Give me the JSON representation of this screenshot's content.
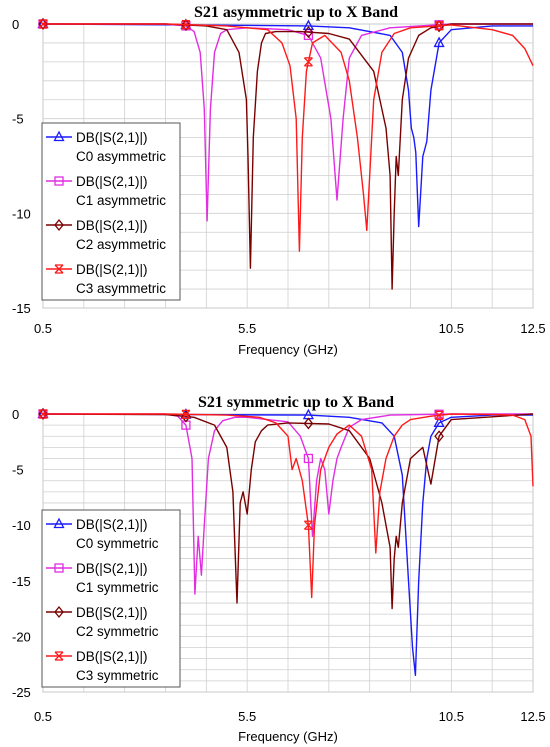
{
  "chart_data": [
    {
      "type": "line",
      "title": "S21 asymmetric up to X Band",
      "xlabel": "Frequency (GHz)",
      "ylabel": "",
      "xlim": [
        0.5,
        12.5
      ],
      "ylim": [
        -15,
        0
      ],
      "xticks": [
        0.5,
        5.5,
        10.5,
        12.5
      ],
      "xtick_labels": [
        "0.5",
        "5.5",
        "10.5",
        "12.5"
      ],
      "yticks": [
        0,
        -5,
        -10,
        -15
      ],
      "ytick_labels": [
        "0",
        "-5",
        "-10",
        "-15"
      ],
      "grid": true,
      "legend_placement": "left",
      "series": [
        {
          "line1": "DB(|S(2,1)|)",
          "line2": "C0 asymmetric",
          "color": "#1a1aff",
          "marker": "triangle",
          "x": [
            0.5,
            4.0,
            7.0,
            8.0,
            9.0,
            9.3,
            9.45,
            9.52,
            9.58,
            9.63,
            9.7,
            9.8,
            9.9,
            10.0,
            10.2,
            10.5,
            11.5,
            12.5
          ],
          "y": [
            0,
            -0.05,
            -0.1,
            -0.2,
            -0.6,
            -1.5,
            -3.5,
            -5.5,
            -6.0,
            -6.8,
            -10.7,
            -7.0,
            -6.2,
            -3.5,
            -1.0,
            -0.3,
            -0.1,
            -0.1
          ]
        },
        {
          "line1": "DB(|S(2,1)|)",
          "line2": "C1 asymmetric",
          "color": "#e22de2",
          "marker": "square",
          "x": [
            0.5,
            3.5,
            4.0,
            4.2,
            4.35,
            4.45,
            4.52,
            4.6,
            4.7,
            4.85,
            5.0,
            5.5,
            6.5,
            7.0,
            7.3,
            7.55,
            7.7,
            7.85,
            8.0,
            8.3,
            9.0,
            10.5,
            11.5,
            12.5
          ],
          "y": [
            0,
            0,
            -0.1,
            -0.4,
            -1.5,
            -4.5,
            -10.4,
            -4.5,
            -1.5,
            -0.5,
            -0.3,
            -0.2,
            -0.3,
            -0.6,
            -1.8,
            -5.0,
            -9.3,
            -5.0,
            -1.8,
            -0.6,
            -0.2,
            0,
            0,
            0
          ],
          "special_points": [
            [
              7.0,
              -0.6
            ],
            [
              7.5,
              -4.0
            ],
            [
              7.7,
              -9.3
            ]
          ]
        },
        {
          "line1": "DB(|S(2,1)|)",
          "line2": "C2 asymmetric",
          "color": "#7a0000",
          "marker": "diamond",
          "x": [
            0.5,
            3.5,
            4.5,
            5.0,
            5.3,
            5.48,
            5.52,
            5.58,
            5.65,
            5.75,
            5.85,
            5.95,
            6.2,
            6.8,
            7.5,
            8.0,
            8.6,
            8.9,
            9.0,
            9.05,
            9.1,
            9.15,
            9.2,
            9.3,
            9.45,
            9.7,
            10.0,
            10.5,
            12.5
          ],
          "y": [
            0,
            0,
            -0.1,
            -0.3,
            -1.5,
            -4.0,
            -7.0,
            -12.9,
            -6.0,
            -2.5,
            -1.0,
            -0.5,
            -0.4,
            -0.4,
            -0.5,
            -0.8,
            -2.5,
            -5.5,
            -8.0,
            -14.0,
            -10.0,
            -7.0,
            -8.0,
            -4.0,
            -1.8,
            -0.6,
            -0.2,
            0,
            0
          ]
        },
        {
          "line1": "DB(|S(2,1)|)",
          "line2": "C3 asymmetric",
          "color": "#ff1a1a",
          "marker": "x",
          "x": [
            0.5,
            3.5,
            5.0,
            6.0,
            6.35,
            6.55,
            6.7,
            6.78,
            6.85,
            6.95,
            7.1,
            7.4,
            7.8,
            8.0,
            8.2,
            8.35,
            8.43,
            8.5,
            8.6,
            8.8,
            9.1,
            9.5,
            10.5,
            11.5,
            12.0,
            12.3,
            12.5
          ],
          "y": [
            0,
            0,
            -0.1,
            -0.3,
            -1.0,
            -2.2,
            -5.0,
            -12.0,
            -6.0,
            -2.5,
            -1.0,
            -0.6,
            -1.5,
            -3.0,
            -6.0,
            -9.0,
            -10.9,
            -8.0,
            -4.0,
            -1.5,
            -0.5,
            -0.2,
            -0.05,
            -0.3,
            -0.6,
            -1.3,
            -2.2
          ]
        }
      ]
    },
    {
      "type": "line",
      "title": "S21 symmetric up to X Band",
      "xlabel": "Frequency (GHz)",
      "ylabel": "",
      "xlim": [
        0.5,
        12.5
      ],
      "ylim": [
        -25,
        0
      ],
      "xticks": [
        0.5,
        5.5,
        10.5,
        12.5
      ],
      "xtick_labels": [
        "0.5",
        "5.5",
        "10.5",
        "12.5"
      ],
      "yticks": [
        0,
        -5,
        -10,
        -15,
        -20,
        -25
      ],
      "ytick_labels": [
        "0",
        "-5",
        "-10",
        "-15",
        "-20",
        "-25"
      ],
      "grid": true,
      "legend_placement": "left",
      "series": [
        {
          "line1": "DB(|S(2,1)|)",
          "line2": "C0 symmetric",
          "color": "#1a1aff",
          "marker": "triangle",
          "x": [
            0.5,
            4.0,
            7.0,
            8.0,
            8.8,
            9.1,
            9.3,
            9.45,
            9.55,
            9.62,
            9.7,
            9.8,
            9.9,
            10.0,
            10.2,
            10.5,
            11.5,
            12.5
          ],
          "y": [
            0,
            -0.05,
            -0.1,
            -0.3,
            -0.8,
            -2.0,
            -5.5,
            -15.0,
            -21.0,
            -23.5,
            -15.0,
            -8.0,
            -4.0,
            -2.0,
            -0.8,
            -0.3,
            -0.1,
            -0.1
          ]
        },
        {
          "line1": "DB(|S(2,1)|)",
          "line2": "C1 symmetric",
          "color": "#e22de2",
          "marker": "square",
          "x": [
            0.5,
            3.5,
            3.8,
            4.0,
            4.15,
            4.22,
            4.3,
            4.38,
            4.45,
            4.55,
            4.7,
            4.9,
            5.2,
            5.5,
            6.5,
            6.8,
            7.0,
            7.1,
            7.2,
            7.3,
            7.4,
            7.5,
            7.6,
            7.7,
            7.8,
            8.0,
            8.3,
            9.0,
            10.5,
            12.5
          ],
          "y": [
            0,
            0,
            -0.2,
            -1.0,
            -4.0,
            -16.2,
            -11.0,
            -14.5,
            -10.0,
            -4.0,
            -1.5,
            -0.6,
            -0.3,
            -0.3,
            -0.7,
            -2.0,
            -4.0,
            -11.0,
            -6.0,
            -4.0,
            -5.0,
            -9.0,
            -6.0,
            -4.0,
            -3.0,
            -1.2,
            -0.5,
            -0.1,
            0,
            0
          ]
        },
        {
          "line1": "DB(|S(2,1)|)",
          "line2": "C2 symmetric",
          "color": "#7a0000",
          "marker": "diamond",
          "x": [
            0.5,
            3.5,
            4.2,
            4.7,
            5.0,
            5.15,
            5.25,
            5.33,
            5.4,
            5.5,
            5.6,
            5.7,
            5.85,
            6.0,
            6.5,
            7.5,
            8.0,
            8.5,
            8.8,
            9.0,
            9.05,
            9.1,
            9.15,
            9.2,
            9.3,
            9.5,
            9.8,
            10.0,
            10.2,
            10.5,
            12.5
          ],
          "y": [
            0,
            -0.05,
            -0.3,
            -1.0,
            -3.0,
            -7.0,
            -17.0,
            -8.0,
            -7.0,
            -9.0,
            -5.0,
            -2.5,
            -1.5,
            -1.0,
            -0.8,
            -0.9,
            -1.5,
            -4.0,
            -8.0,
            -12.0,
            -17.5,
            -13.0,
            -11.0,
            -12.0,
            -8.0,
            -4.0,
            -3.0,
            -6.3,
            -2.0,
            -0.5,
            0
          ]
        },
        {
          "line1": "DB(|S(2,1)|)",
          "line2": "C3 symmetric",
          "color": "#ff1a1a",
          "marker": "x",
          "x": [
            0.5,
            3.5,
            5.0,
            5.8,
            6.2,
            6.5,
            6.6,
            6.7,
            6.85,
            7.0,
            7.08,
            7.15,
            7.3,
            7.5,
            7.7,
            8.0,
            8.3,
            8.55,
            8.65,
            8.75,
            8.9,
            9.1,
            9.3,
            9.5,
            10.0,
            10.5,
            11.5,
            12.0,
            12.3,
            12.45,
            12.5
          ],
          "y": [
            0,
            0,
            -0.1,
            -0.3,
            -0.8,
            -2.0,
            -5.0,
            -4.0,
            -6.0,
            -10.0,
            -16.5,
            -10.0,
            -5.0,
            -3.0,
            -1.8,
            -1.0,
            -2.0,
            -5.0,
            -12.5,
            -7.0,
            -4.0,
            -2.0,
            -1.0,
            -0.5,
            -0.2,
            0,
            -0.05,
            -0.1,
            -0.5,
            -2.0,
            -6.5
          ]
        }
      ]
    }
  ]
}
